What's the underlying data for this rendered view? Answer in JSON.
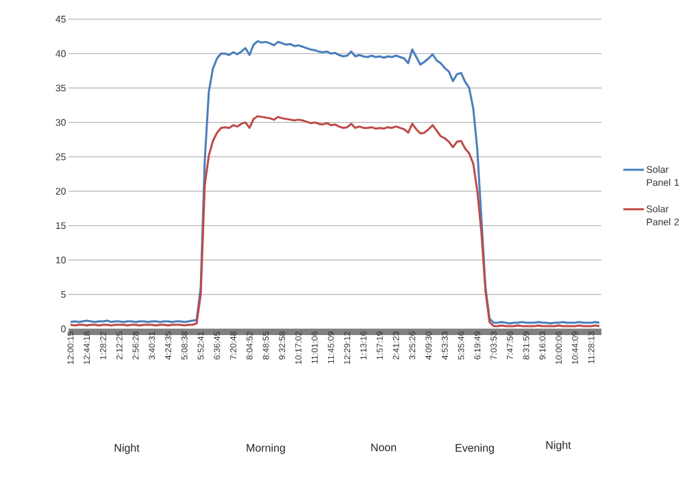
{
  "chart_data": {
    "type": "line",
    "categories": [
      "12:00:15",
      null,
      null,
      null,
      "12:44:18",
      null,
      null,
      null,
      "1:28:22",
      null,
      null,
      null,
      "2:12:25",
      null,
      null,
      null,
      "2:56:28",
      null,
      null,
      null,
      "3:40:31",
      null,
      null,
      null,
      "4:24:35",
      null,
      null,
      null,
      "5:08:38",
      null,
      null,
      null,
      "5:52:41",
      null,
      null,
      null,
      "6:36:45",
      null,
      null,
      null,
      "7:20:48",
      null,
      null,
      null,
      "8:04:52",
      null,
      null,
      null,
      "8:48:55",
      null,
      null,
      null,
      "9:32:58",
      null,
      null,
      null,
      "10:17:02",
      null,
      null,
      null,
      "11:01:06",
      null,
      null,
      null,
      "11:45:09",
      null,
      null,
      null,
      "12:29:12",
      null,
      null,
      null,
      "1:13:16",
      null,
      null,
      null,
      "1:57:19",
      null,
      null,
      null,
      "2:41:23",
      null,
      null,
      null,
      "3:25:26",
      null,
      null,
      null,
      "4:09:30",
      null,
      null,
      null,
      "4:53:33",
      null,
      null,
      null,
      "5:35:46",
      null,
      null,
      null,
      "6:19:49",
      null,
      null,
      null,
      "7:03:53",
      null,
      null,
      null,
      "7:47:56",
      null,
      null,
      null,
      "8:31:59",
      null,
      null,
      null,
      "9:16:03",
      null,
      null,
      null,
      "10:00:06",
      null,
      null,
      null,
      "10:44:09",
      null,
      null,
      null,
      "11:28:13",
      null,
      null
    ],
    "series": [
      {
        "name": "Solar Panel 1",
        "color": "#4a7ebb",
        "values": [
          1.0,
          1.1,
          1.0,
          1.1,
          1.2,
          1.1,
          1.0,
          1.1,
          1.1,
          1.2,
          1.0,
          1.1,
          1.1,
          1.0,
          1.1,
          1.1,
          1.0,
          1.1,
          1.1,
          1.0,
          1.1,
          1.1,
          1.0,
          1.1,
          1.1,
          1.0,
          1.1,
          1.1,
          1.0,
          1.1,
          1.2,
          1.3,
          6.0,
          24.5,
          34.5,
          37.8,
          39.3,
          40.0,
          40.0,
          39.8,
          40.2,
          39.9,
          40.3,
          40.8,
          39.8,
          41.3,
          41.8,
          41.6,
          41.7,
          41.5,
          41.2,
          41.7,
          41.5,
          41.3,
          41.4,
          41.1,
          41.2,
          41.0,
          40.8,
          40.6,
          40.5,
          40.3,
          40.2,
          40.3,
          40.0,
          40.1,
          39.8,
          39.6,
          39.7,
          40.3,
          39.6,
          39.8,
          39.6,
          39.5,
          39.7,
          39.5,
          39.6,
          39.4,
          39.6,
          39.5,
          39.7,
          39.5,
          39.3,
          38.6,
          40.6,
          39.5,
          38.4,
          38.8,
          39.3,
          39.9,
          39.0,
          38.6,
          37.9,
          37.4,
          36.0,
          37.0,
          37.2,
          35.9,
          35.0,
          32.0,
          26.0,
          16.0,
          6.0,
          1.5,
          0.9,
          0.9,
          1.0,
          0.9,
          0.8,
          0.9,
          0.9,
          1.0,
          0.9,
          0.9,
          0.9,
          1.0,
          0.9,
          0.9,
          0.8,
          0.9,
          0.9,
          1.0,
          0.9,
          0.9,
          0.9,
          1.0,
          0.9,
          0.9,
          0.9,
          1.0,
          0.9
        ]
      },
      {
        "name": "Solar Panel 2",
        "color": "#be4b48",
        "values": [
          0.6,
          0.5,
          0.6,
          0.6,
          0.5,
          0.6,
          0.6,
          0.5,
          0.6,
          0.6,
          0.5,
          0.6,
          0.6,
          0.6,
          0.5,
          0.6,
          0.6,
          0.5,
          0.6,
          0.6,
          0.6,
          0.5,
          0.6,
          0.6,
          0.5,
          0.6,
          0.6,
          0.6,
          0.5,
          0.6,
          0.6,
          0.8,
          5.0,
          20.9,
          25.2,
          27.3,
          28.5,
          29.2,
          29.3,
          29.2,
          29.6,
          29.4,
          29.8,
          30.0,
          29.2,
          30.5,
          30.9,
          30.8,
          30.7,
          30.6,
          30.4,
          30.8,
          30.6,
          30.5,
          30.4,
          30.3,
          30.4,
          30.3,
          30.1,
          29.9,
          30.0,
          29.8,
          29.7,
          29.9,
          29.6,
          29.7,
          29.4,
          29.2,
          29.3,
          29.8,
          29.2,
          29.4,
          29.2,
          29.2,
          29.3,
          29.1,
          29.2,
          29.1,
          29.3,
          29.2,
          29.4,
          29.2,
          29.0,
          28.5,
          29.8,
          29.0,
          28.4,
          28.5,
          29.0,
          29.6,
          28.8,
          28.0,
          27.7,
          27.2,
          26.4,
          27.2,
          27.3,
          26.2,
          25.5,
          24.0,
          20.0,
          14.0,
          5.5,
          1.0,
          0.4,
          0.4,
          0.5,
          0.4,
          0.4,
          0.4,
          0.5,
          0.4,
          0.4,
          0.4,
          0.4,
          0.5,
          0.4,
          0.4,
          0.4,
          0.4,
          0.5,
          0.4,
          0.4,
          0.4,
          0.4,
          0.5,
          0.4,
          0.4,
          0.4,
          0.5,
          0.4
        ]
      }
    ],
    "ylim": [
      0,
      45
    ],
    "yticks": [
      0,
      5,
      10,
      15,
      20,
      25,
      30,
      35,
      40,
      45
    ],
    "grid": "y",
    "legend": "right",
    "annotations": [
      "Night",
      "Morning",
      "Noon",
      "Evening",
      "Night"
    ]
  }
}
